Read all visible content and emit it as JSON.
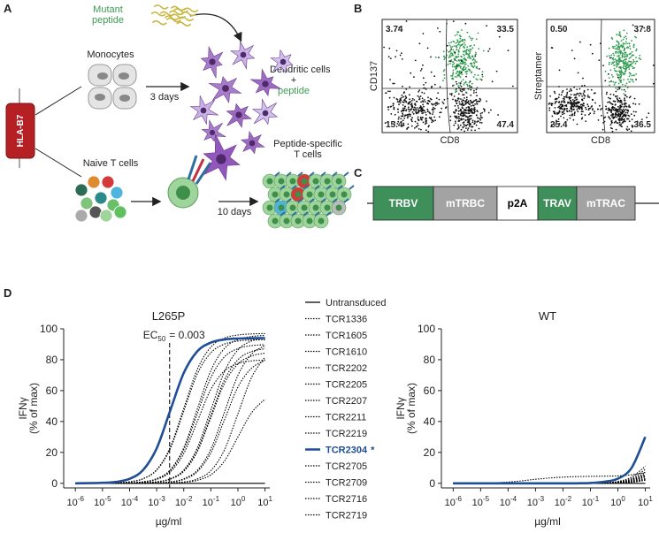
{
  "panel_labels": [
    "A",
    "B",
    "C",
    "D"
  ],
  "panel_a": {
    "mutant_peptide": [
      "Mutant",
      "peptide"
    ],
    "monocytes": "Monocytes",
    "three_days": "3 days",
    "dendritic_cells": "Dendritic cells",
    "plus": "+",
    "peptide": "peptide",
    "hla": "HLA-B7",
    "naive_t_cells": "Naive T cells",
    "peptide_specific": [
      "Peptide-specific",
      "T cells"
    ],
    "ten_days": "10 days"
  },
  "panel_b": [
    {
      "y_label": "CD137",
      "x_label": "CD8",
      "quadrants": [
        "3.74",
        "33.5",
        "15.4",
        "47.4"
      ]
    },
    {
      "y_label": "Streptamer",
      "x_label": "CD8",
      "quadrants": [
        "0.50",
        "37.8",
        "25.4",
        "36.5"
      ]
    }
  ],
  "panel_c": {
    "segments": [
      {
        "label": "TRBV",
        "color": "#3f8f5b",
        "text_color": "#ffffff"
      },
      {
        "label": "mTRBC",
        "color": "#a3a3a3",
        "text_color": "#ffffff"
      },
      {
        "label": "p2A",
        "color": "#ffffff",
        "text_color": "#000000"
      },
      {
        "label": "TRAV",
        "color": "#3f8f5b",
        "text_color": "#ffffff"
      },
      {
        "label": "mTRAC",
        "color": "#a3a3a3",
        "text_color": "#ffffff"
      }
    ]
  },
  "chart_data": [
    {
      "type": "line",
      "title": "L265P",
      "y_label": [
        "IFNγ",
        "(% of max)"
      ],
      "x_label": "µg/ml",
      "log_x": true,
      "legend": "right",
      "x": [
        1e-06,
        3.16e-06,
        1e-05,
        3.16e-05,
        0.0001,
        0.000316,
        0.001,
        0.00316,
        0.01,
        0.0316,
        0.1,
        0.316,
        1,
        3.16,
        10
      ],
      "xlim": [
        5e-07,
        15
      ],
      "xticks": [
        {
          "value": 1e-06,
          "label": "10",
          "exponent": "-6"
        },
        {
          "value": 1e-05,
          "label": "10",
          "exponent": "-5"
        },
        {
          "value": 0.0001,
          "label": "10",
          "exponent": "-4"
        },
        {
          "value": 0.001,
          "label": "10",
          "exponent": "-3"
        },
        {
          "value": 0.01,
          "label": "10",
          "exponent": "-2"
        },
        {
          "value": 0.1,
          "label": "10",
          "exponent": "-1"
        },
        {
          "value": 1,
          "label": "10",
          "exponent": "0"
        },
        {
          "value": 10,
          "label": "10",
          "exponent": "1"
        }
      ],
      "ylim": [
        -3,
        100
      ],
      "yticks": [
        0,
        20,
        40,
        60,
        80,
        100
      ],
      "annotation": {
        "text": "EC",
        "subscript": "50",
        "label": "= 0.003",
        "x": 0.003
      },
      "series": [
        {
          "name": "Untransduced",
          "color": "#000000",
          "dash": "solid",
          "values": [
            0,
            0,
            0,
            0,
            0,
            0,
            0,
            0,
            0,
            0,
            0,
            0,
            0,
            0,
            0
          ]
        },
        {
          "name": "TCR1336",
          "color": "#000000",
          "dash": "dotted",
          "values": [
            0,
            0,
            0.1,
            0.3,
            1,
            3,
            8.8,
            23.3,
            48.5,
            73.7,
            88.2,
            94,
            96,
            96.7,
            96.9
          ]
        },
        {
          "name": "TCR1605",
          "color": "#000000",
          "dash": "dotted",
          "values": [
            0,
            0,
            0,
            0.1,
            0.3,
            1,
            3,
            8.7,
            23,
            48,
            73,
            87.3,
            93,
            95,
            95.7
          ]
        },
        {
          "name": "TCR1610",
          "color": "#000000",
          "dash": "dotted",
          "values": [
            0,
            0,
            0,
            0.1,
            0.3,
            0.9,
            2.8,
            8.2,
            21.6,
            45,
            68.4,
            81.8,
            87.2,
            89.1,
            89.7
          ]
        },
        {
          "name": "TCR2202",
          "color": "#000000",
          "dash": "dotted",
          "values": [
            0,
            0,
            0,
            0,
            0.1,
            0.3,
            1,
            2.9,
            8.6,
            22.8,
            47.5,
            72.2,
            86.4,
            92.1,
            94.1
          ]
        },
        {
          "name": "TCR2205",
          "color": "#000000",
          "dash": "dotted",
          "values": [
            0,
            0,
            0,
            0,
            0.1,
            0.3,
            0.9,
            2.6,
            7.7,
            20.4,
            42.5,
            64.6,
            77.3,
            82.4,
            84.2
          ]
        },
        {
          "name": "TCR2207",
          "color": "#000000",
          "dash": "dotted",
          "values": [
            0,
            0,
            0,
            0,
            0,
            0.1,
            0.3,
            0.9,
            2.9,
            8.4,
            22.1,
            46,
            69.9,
            83.6,
            89.1
          ]
        },
        {
          "name": "TCR2211",
          "color": "#000000",
          "dash": "dotted",
          "values": [
            0,
            0,
            0.1,
            0.3,
            0.9,
            2.9,
            8.5,
            22.3,
            46.5,
            70.7,
            84.5,
            90.1,
            92.1,
            92.7,
            92.9
          ]
        },
        {
          "name": "TCR2219",
          "color": "#000000",
          "dash": "dotted",
          "values": [
            0,
            0,
            0,
            0.1,
            0.2,
            0.8,
            2.5,
            7.3,
            19.2,
            40,
            60.8,
            72.7,
            77.5,
            79.2,
            79.8
          ]
        },
        {
          "name": "TCR2304",
          "note": "*",
          "color": "#1f4e96",
          "dash": "solid",
          "values": [
            0,
            0.1,
            0.3,
            0.9,
            2.9,
            8.6,
            22.6,
            47,
            71.4,
            85.4,
            91.1,
            93.1,
            93.7,
            93.9,
            94
          ]
        },
        {
          "name": "TCR2705",
          "color": "#000000",
          "dash": "dotted",
          "values": [
            0,
            0,
            0,
            0,
            0.1,
            0.3,
            0.9,
            2.7,
            8,
            21.1,
            44,
            66.9,
            80,
            85.3,
            87.1
          ]
        },
        {
          "name": "TCR2709",
          "color": "#000000",
          "dash": "dotted",
          "values": [
            0,
            0,
            0,
            0,
            0,
            0.1,
            0.2,
            0.8,
            2.5,
            7.5,
            19.7,
            41,
            62.3,
            74.5,
            79.5
          ]
        },
        {
          "name": "TCR2716",
          "color": "#000000",
          "dash": "dotted",
          "values": [
            0,
            0,
            0,
            0,
            0,
            0,
            0.1,
            0.3,
            0.9,
            2.8,
            8.2,
            21.6,
            45,
            68.4,
            81.8
          ]
        },
        {
          "name": "TCR2719",
          "color": "#000000",
          "dash": "dotted",
          "values": [
            0,
            0,
            0,
            0,
            0,
            0,
            0.1,
            0.2,
            0.6,
            1.9,
            5.5,
            14.4,
            30,
            45.6,
            54.5
          ]
        }
      ]
    },
    {
      "type": "line",
      "title": "WT",
      "y_label": [
        "IFNγ",
        "(% of max)"
      ],
      "x_label": "µg/ml",
      "log_x": true,
      "x": [
        1e-06,
        3.16e-06,
        1e-05,
        3.16e-05,
        0.0001,
        0.000316,
        0.001,
        0.00316,
        0.01,
        0.0316,
        0.1,
        0.316,
        1,
        3.16,
        10
      ],
      "xlim": [
        5e-07,
        15
      ],
      "xticks": [
        {
          "value": 1e-06,
          "label": "10",
          "exponent": "-6"
        },
        {
          "value": 1e-05,
          "label": "10",
          "exponent": "-5"
        },
        {
          "value": 0.0001,
          "label": "10",
          "exponent": "-4"
        },
        {
          "value": 0.001,
          "label": "10",
          "exponent": "-3"
        },
        {
          "value": 0.01,
          "label": "10",
          "exponent": "-2"
        },
        {
          "value": 0.1,
          "label": "10",
          "exponent": "-1"
        },
        {
          "value": 1,
          "label": "10",
          "exponent": "0"
        },
        {
          "value": 10,
          "label": "10",
          "exponent": "1"
        }
      ],
      "ylim": [
        -3,
        100
      ],
      "yticks": [
        0,
        20,
        40,
        60,
        80,
        100
      ],
      "series": [
        {
          "color": "#000000",
          "dash": "solid",
          "values": [
            0,
            0,
            0,
            0,
            0,
            0,
            0,
            0,
            0,
            0,
            0,
            0,
            0,
            0,
            0
          ]
        },
        {
          "color": "#000000",
          "dash": "dotted",
          "values": [
            0,
            0,
            0,
            0,
            0,
            0,
            0,
            0,
            0,
            0,
            0,
            0.2,
            0.8,
            2.5,
            7
          ]
        },
        {
          "color": "#000000",
          "dash": "dotted",
          "values": [
            0,
            0,
            0,
            0,
            0,
            0,
            0,
            0,
            0,
            0,
            0,
            0.1,
            0.5,
            1.5,
            4
          ]
        },
        {
          "color": "#000000",
          "dash": "dotted",
          "values": [
            0,
            0,
            0,
            0,
            0,
            0,
            0,
            0,
            0,
            0,
            0,
            0.3,
            1,
            3,
            9
          ]
        },
        {
          "color": "#000000",
          "dash": "dotted",
          "values": [
            0,
            0,
            0,
            0,
            0,
            0,
            0,
            0,
            0,
            0,
            0,
            0.1,
            0.4,
            1.2,
            3
          ]
        },
        {
          "color": "#000000",
          "dash": "dotted",
          "values": [
            0,
            0,
            0.1,
            0.3,
            0.8,
            1.6,
            2.6,
            3.4,
            4,
            4.3,
            4.5,
            4.6,
            4.8,
            5.5,
            7
          ]
        },
        {
          "color": "#000000",
          "dash": "dotted",
          "values": [
            0,
            0,
            0,
            0,
            0,
            0,
            0,
            0,
            0,
            0,
            0,
            0,
            0.2,
            0.6,
            2
          ]
        },
        {
          "color": "#000000",
          "dash": "dotted",
          "values": [
            0,
            0,
            0,
            0,
            0,
            0,
            0,
            0,
            0,
            0,
            0,
            0.1,
            0.5,
            2,
            6
          ]
        },
        {
          "color": "#000000",
          "dash": "dotted",
          "values": [
            0,
            0,
            0,
            0,
            0,
            0,
            0,
            0,
            0,
            0,
            0,
            0.1,
            0.3,
            1,
            2.5
          ]
        },
        {
          "color": "#1f4e96",
          "dash": "solid",
          "values": [
            0,
            0,
            0,
            0,
            0,
            0,
            0,
            0,
            0,
            0,
            0.2,
            1,
            3,
            10,
            30
          ]
        },
        {
          "color": "#000000",
          "dash": "dotted",
          "values": [
            0,
            0,
            0,
            0,
            0,
            0,
            0,
            0,
            0,
            0,
            0,
            0.2,
            0.7,
            2.2,
            5
          ]
        },
        {
          "color": "#000000",
          "dash": "dotted",
          "values": [
            0,
            0,
            0,
            0,
            0,
            0,
            0,
            0,
            0,
            0,
            0,
            0.1,
            0.4,
            1.5,
            4.5
          ]
        },
        {
          "color": "#000000",
          "dash": "dotted",
          "values": [
            0,
            0,
            0,
            0,
            0,
            0,
            0,
            0,
            0,
            0,
            0,
            0.3,
            1.2,
            4,
            11
          ]
        },
        {
          "color": "#000000",
          "dash": "dotted",
          "values": [
            0,
            0,
            0,
            0,
            0,
            0,
            0,
            0,
            0,
            0,
            0,
            0.1,
            0.2,
            0.8,
            2
          ]
        }
      ]
    }
  ]
}
